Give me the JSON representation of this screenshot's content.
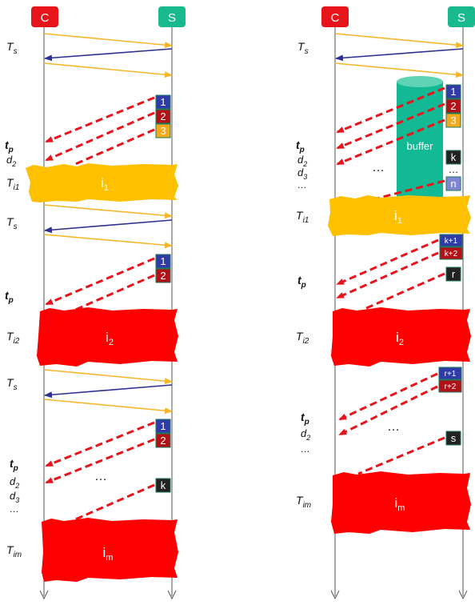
{
  "colors": {
    "client": "#e8141c",
    "server": "#18b98c",
    "ack_arrow": "#f7b62a",
    "reply_arrow": "#2e3192",
    "data_arrow": "#e8141c",
    "interval_yellow": "#ffc000",
    "interval_red": "#ff0000",
    "buffer": "#12b994",
    "pkt_blue": "#2e3ba8",
    "pkt_red": "#b01217",
    "pkt_orange": "#f4a81c",
    "pkt_black": "#222222",
    "pkt_lavender": "#7f86d6"
  },
  "nodes": {
    "client": "C",
    "server": "S"
  },
  "left": {
    "labels": {
      "ts1": "T",
      "ts1_sub": "s",
      "tp1": "t",
      "tp1_sub": "p",
      "d2a": "d",
      "d2a_sub": "2",
      "ti1": "T",
      "ti1_sub": "i1",
      "ts2": "T",
      "ts2_sub": "s",
      "tp2": "t",
      "tp2_sub": "p",
      "ti2": "T",
      "ti2_sub": "i2",
      "ts3": "T",
      "ts3_sub": "s",
      "tp3": "t",
      "tp3_sub": "p",
      "d2b": "d",
      "d2b_sub": "2",
      "d3b": "d",
      "d3b_sub": "3",
      "ell": "…",
      "tim": "T",
      "tim_sub": "im"
    },
    "packets_group1": [
      "1",
      "2",
      "3"
    ],
    "packets_group2": [
      "1",
      "2"
    ],
    "packets_group3": [
      "1",
      "2",
      "k"
    ],
    "dots": "…",
    "intervals": [
      {
        "main": "i",
        "sub": "1"
      },
      {
        "main": "i",
        "sub": "2"
      },
      {
        "main": "i",
        "sub": "m"
      }
    ]
  },
  "right": {
    "labels": {
      "ts1": "T",
      "ts1_sub": "s",
      "tp1": "t",
      "tp1_sub": "p",
      "d2": "d",
      "d2_sub": "2",
      "d3": "d",
      "d3_sub": "3",
      "ell1": "…",
      "ti1": "T",
      "ti1_sub": "i1",
      "tp2": "t",
      "tp2_sub": "p",
      "ti2": "T",
      "ti2_sub": "i2",
      "tp3": "t",
      "tp3_sub": "p",
      "d2b": "d",
      "d2b_sub": "2",
      "ell2": "…",
      "tim": "T",
      "tim_sub": "im"
    },
    "buffer_label": "buffer",
    "packets_group1": [
      "1",
      "2",
      "3"
    ],
    "packets_buffer": [
      "k",
      "…",
      "n"
    ],
    "packets_group2": [
      "k+1",
      "k+2",
      "r"
    ],
    "packets_group3": [
      "r+1",
      "r+2",
      "s"
    ],
    "dots1": "…",
    "dots2": "…",
    "intervals": [
      {
        "main": "i",
        "sub": "1"
      },
      {
        "main": "i",
        "sub": "2"
      },
      {
        "main": "i",
        "sub": "m"
      }
    ]
  }
}
